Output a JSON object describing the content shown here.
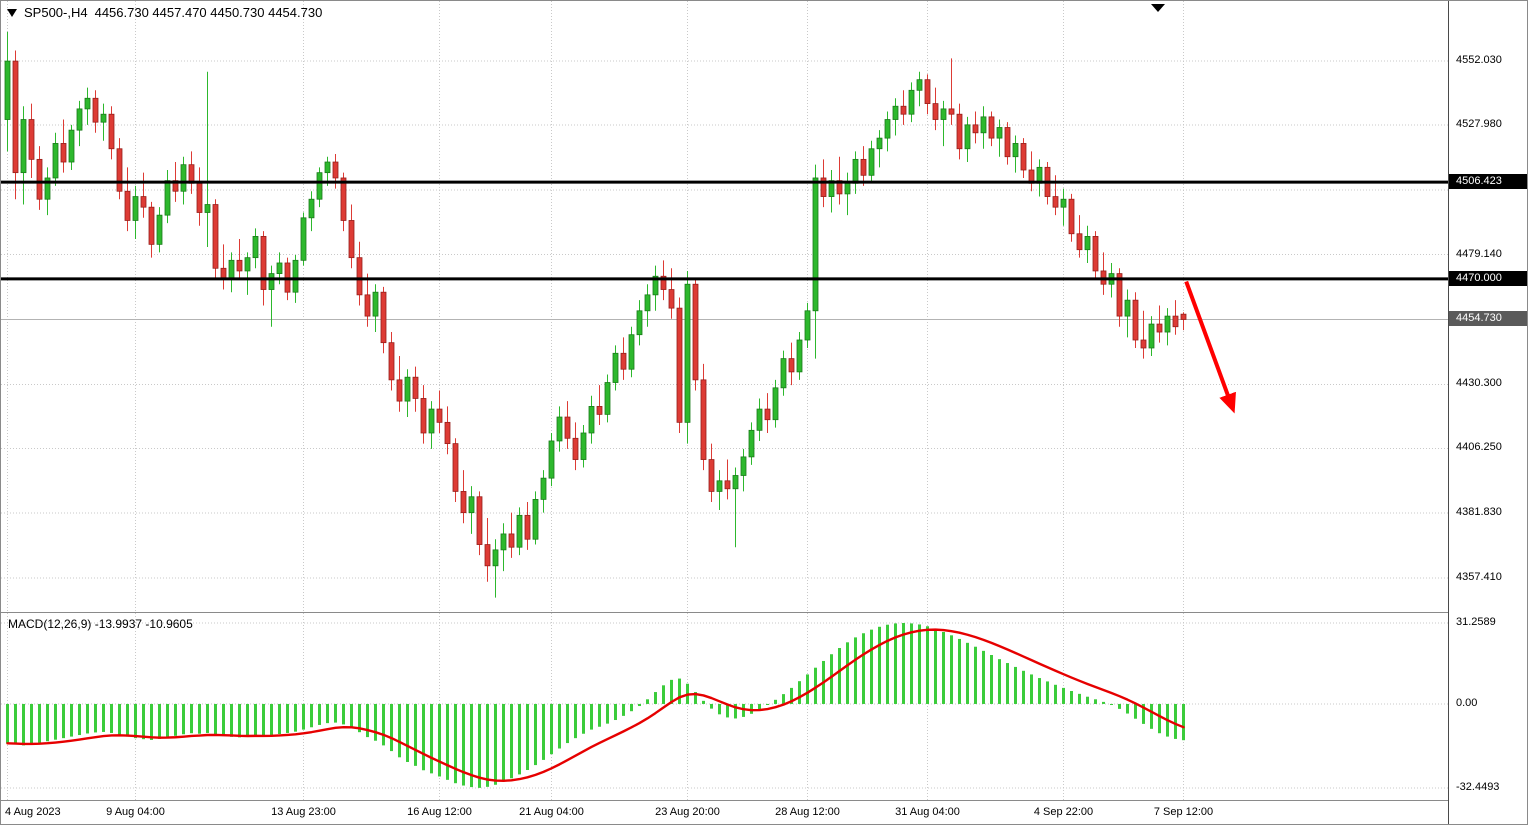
{
  "title": {
    "symbol_period": "SP500-,H4",
    "ohlc": "4456.730 4457.470 4450.730 4454.730"
  },
  "colors": {
    "background": "#ffffff",
    "grid": "#c9c9c9",
    "bull": "#2db82d",
    "bull_border": "#1a7a1a",
    "bear": "#dd3b35",
    "bear_border": "#961f1b",
    "hline": "#000000",
    "arrow": "#ff0000",
    "macd_histogram": "#3bcc3b",
    "macd_signal": "#e60000",
    "badge_level": "#000000",
    "badge_current": "#5a5a5a",
    "current_price_line": "#b3b3b3",
    "axis_text": "#000000"
  },
  "chart_data": {
    "type": "candlestick",
    "symbol": "SP500-",
    "timeframe": "H4",
    "last_ohlc": {
      "open": 4456.73,
      "high": 4457.47,
      "low": 4450.73,
      "close": 4454.73
    },
    "x_ticks": [
      {
        "label": "4 Aug 2023",
        "index": 0,
        "align": "left"
      },
      {
        "label": "9 Aug 04:00",
        "index": 16
      },
      {
        "label": "13 Aug 23:00",
        "index": 37
      },
      {
        "label": "16 Aug 12:00",
        "index": 54
      },
      {
        "label": "21 Aug 04:00",
        "index": 68
      },
      {
        "label": "23 Aug 20:00",
        "index": 85
      },
      {
        "label": "28 Aug 12:00",
        "index": 100
      },
      {
        "label": "31 Aug 04:00",
        "index": 115
      },
      {
        "label": "4 Sep 22:00",
        "index": 132
      },
      {
        "label": "7 Sep 12:00",
        "index": 147
      }
    ],
    "y_ticks": [
      {
        "label": "4552.030",
        "price": 4552.03
      },
      {
        "label": "4527.980",
        "price": 4527.98
      },
      {
        "label": "4479.140",
        "price": 4479.14
      },
      {
        "label": "4430.300",
        "price": 4430.3
      },
      {
        "label": "4406.250",
        "price": 4406.25
      },
      {
        "label": "4381.830",
        "price": 4381.83
      },
      {
        "label": "4357.410",
        "price": 4357.41
      }
    ],
    "grid_prices": [
      4552.03,
      4527.98,
      4503.56,
      4479.14,
      4454.72,
      4430.3,
      4406.25,
      4381.83,
      4357.41
    ],
    "hlines": [
      {
        "label": "4506.423",
        "price": 4506.423
      },
      {
        "label": "4470.000",
        "price": 4470.0
      }
    ],
    "current_price": {
      "label": "4454.730",
      "price": 4454.73
    },
    "arrow": {
      "from": {
        "index": 147.4,
        "price": 4469
      },
      "to": {
        "index": 153,
        "price": 4423
      }
    },
    "candles": [
      [
        4530,
        4563,
        4518,
        4552
      ],
      [
        4552,
        4556,
        4500,
        4510
      ],
      [
        4510,
        4535,
        4498,
        4530
      ],
      [
        4530,
        4536,
        4508,
        4515
      ],
      [
        4515,
        4520,
        4496,
        4500
      ],
      [
        4500,
        4512,
        4494,
        4508
      ],
      [
        4508,
        4525,
        4505,
        4521
      ],
      [
        4521,
        4530,
        4510,
        4514
      ],
      [
        4514,
        4528,
        4511,
        4526
      ],
      [
        4526,
        4537,
        4520,
        4534
      ],
      [
        4534,
        4542,
        4528,
        4538
      ],
      [
        4538,
        4541,
        4525,
        4529
      ],
      [
        4529,
        4536,
        4522,
        4532
      ],
      [
        4532,
        4535,
        4515,
        4519
      ],
      [
        4519,
        4523,
        4500,
        4503
      ],
      [
        4503,
        4512,
        4488,
        4492
      ],
      [
        4492,
        4505,
        4485,
        4501
      ],
      [
        4501,
        4510,
        4493,
        4497
      ],
      [
        4497,
        4499,
        4478,
        4483
      ],
      [
        4483,
        4497,
        4480,
        4494
      ],
      [
        4494,
        4511,
        4491,
        4507
      ],
      [
        4507,
        4514,
        4499,
        4503
      ],
      [
        4503,
        4516,
        4498,
        4513
      ],
      [
        4513,
        4518,
        4502,
        4506
      ],
      [
        4506,
        4512,
        4490,
        4495
      ],
      [
        4495,
        4548,
        4482,
        4498
      ],
      [
        4498,
        4500,
        4470,
        4474
      ],
      [
        4474,
        4483,
        4466,
        4470
      ],
      [
        4470,
        4480,
        4465,
        4477
      ],
      [
        4477,
        4485,
        4470,
        4473
      ],
      [
        4473,
        4480,
        4464,
        4478
      ],
      [
        4478,
        4489,
        4474,
        4486
      ],
      [
        4486,
        4488,
        4460,
        4466
      ],
      [
        4466,
        4475,
        4452,
        4472
      ],
      [
        4472,
        4480,
        4468,
        4476
      ],
      [
        4476,
        4478,
        4462,
        4465
      ],
      [
        4465,
        4479,
        4461,
        4477
      ],
      [
        4477,
        4495,
        4475,
        4493
      ],
      [
        4493,
        4503,
        4488,
        4500
      ],
      [
        4500,
        4512,
        4497,
        4510
      ],
      [
        4510,
        4516,
        4505,
        4514
      ],
      [
        4514,
        4517,
        4504,
        4508
      ],
      [
        4508,
        4510,
        4488,
        4492
      ],
      [
        4492,
        4498,
        4474,
        4478
      ],
      [
        4478,
        4484,
        4460,
        4464
      ],
      [
        4464,
        4472,
        4452,
        4456
      ],
      [
        4456,
        4468,
        4450,
        4465
      ],
      [
        4465,
        4467,
        4442,
        4446
      ],
      [
        4446,
        4450,
        4428,
        4432
      ],
      [
        4432,
        4441,
        4420,
        4424
      ],
      [
        4424,
        4436,
        4418,
        4433
      ],
      [
        4433,
        4437,
        4420,
        4425
      ],
      [
        4425,
        4430,
        4408,
        4412
      ],
      [
        4412,
        4424,
        4406,
        4421
      ],
      [
        4421,
        4428,
        4412,
        4416
      ],
      [
        4416,
        4422,
        4404,
        4408
      ],
      [
        4408,
        4410,
        4386,
        4390
      ],
      [
        4390,
        4398,
        4378,
        4382
      ],
      [
        4382,
        4392,
        4374,
        4388
      ],
      [
        4388,
        4390,
        4366,
        4370
      ],
      [
        4370,
        4380,
        4356,
        4362
      ],
      [
        4362,
        4372,
        4350,
        4368
      ],
      [
        4368,
        4378,
        4360,
        4374
      ],
      [
        4374,
        4382,
        4365,
        4369
      ],
      [
        4369,
        4384,
        4366,
        4381
      ],
      [
        4381,
        4386,
        4368,
        4372
      ],
      [
        4372,
        4390,
        4370,
        4387
      ],
      [
        4387,
        4398,
        4382,
        4395
      ],
      [
        4395,
        4412,
        4392,
        4409
      ],
      [
        4409,
        4422,
        4405,
        4418
      ],
      [
        4418,
        4424,
        4406,
        4410
      ],
      [
        4410,
        4416,
        4398,
        4402
      ],
      [
        4402,
        4415,
        4399,
        4412
      ],
      [
        4412,
        4426,
        4408,
        4422
      ],
      [
        4422,
        4430,
        4415,
        4419
      ],
      [
        4419,
        4434,
        4416,
        4431
      ],
      [
        4431,
        4445,
        4428,
        4442
      ],
      [
        4442,
        4448,
        4432,
        4436
      ],
      [
        4436,
        4452,
        4433,
        4449
      ],
      [
        4449,
        4462,
        4445,
        4458
      ],
      [
        4458,
        4468,
        4452,
        4464
      ],
      [
        4464,
        4475,
        4458,
        4471
      ],
      [
        4471,
        4477,
        4462,
        4466
      ],
      [
        4466,
        4474,
        4455,
        4459
      ],
      [
        4459,
        4463,
        4412,
        4416
      ],
      [
        4416,
        4473,
        4408,
        4468
      ],
      [
        4468,
        4470,
        4428,
        4432
      ],
      [
        4432,
        4438,
        4398,
        4402
      ],
      [
        4402,
        4408,
        4386,
        4390
      ],
      [
        4390,
        4398,
        4383,
        4394
      ],
      [
        4394,
        4402,
        4387,
        4391
      ],
      [
        4391,
        4399,
        4369,
        4396
      ],
      [
        4396,
        4406,
        4390,
        4403
      ],
      [
        4403,
        4416,
        4400,
        4413
      ],
      [
        4413,
        4425,
        4409,
        4421
      ],
      [
        4421,
        4427,
        4412,
        4417
      ],
      [
        4417,
        4432,
        4414,
        4429
      ],
      [
        4429,
        4443,
        4426,
        4440
      ],
      [
        4440,
        4446,
        4430,
        4435
      ],
      [
        4435,
        4450,
        4432,
        4447
      ],
      [
        4447,
        4461,
        4444,
        4458
      ],
      [
        4458,
        4513,
        4440,
        4508
      ],
      [
        4508,
        4515,
        4497,
        4501
      ],
      [
        4501,
        4511,
        4495,
        4507
      ],
      [
        4507,
        4516,
        4498,
        4502
      ],
      [
        4502,
        4510,
        4494,
        4506
      ],
      [
        4506,
        4518,
        4502,
        4515
      ],
      [
        4515,
        4520,
        4505,
        4509
      ],
      [
        4509,
        4522,
        4506,
        4519
      ],
      [
        4519,
        4526,
        4512,
        4523
      ],
      [
        4523,
        4533,
        4518,
        4530
      ],
      [
        4530,
        4538,
        4524,
        4535
      ],
      [
        4535,
        4541,
        4528,
        4532
      ],
      [
        4532,
        4544,
        4529,
        4541
      ],
      [
        4541,
        4548,
        4535,
        4545
      ],
      [
        4545,
        4547,
        4532,
        4536
      ],
      [
        4536,
        4542,
        4526,
        4530
      ],
      [
        4530,
        4537,
        4520,
        4534
      ],
      [
        4534,
        4553,
        4528,
        4532
      ],
      [
        4532,
        4536,
        4515,
        4519
      ],
      [
        4519,
        4531,
        4514,
        4528
      ],
      [
        4528,
        4533,
        4521,
        4525
      ],
      [
        4525,
        4535,
        4519,
        4531
      ],
      [
        4531,
        4533,
        4520,
        4523
      ],
      [
        4523,
        4530,
        4516,
        4527
      ],
      [
        4527,
        4529,
        4513,
        4516
      ],
      [
        4516,
        4524,
        4510,
        4521
      ],
      [
        4521,
        4523,
        4508,
        4511
      ],
      [
        4511,
        4518,
        4503,
        4506
      ],
      [
        4506,
        4515,
        4501,
        4512
      ],
      [
        4512,
        4514,
        4498,
        4501
      ],
      [
        4501,
        4509,
        4494,
        4497
      ],
      [
        4497,
        4504,
        4490,
        4500
      ],
      [
        4500,
        4502,
        4484,
        4487
      ],
      [
        4487,
        4494,
        4478,
        4481
      ],
      [
        4481,
        4490,
        4476,
        4486
      ],
      [
        4486,
        4488,
        4470,
        4473
      ],
      [
        4473,
        4480,
        4464,
        4468
      ],
      [
        4468,
        4476,
        4463,
        4472
      ],
      [
        4472,
        4474,
        4452,
        4456
      ],
      [
        4456,
        4466,
        4448,
        4462
      ],
      [
        4462,
        4465,
        4444,
        4447
      ],
      [
        4447,
        4458,
        4440,
        4444
      ],
      [
        4444,
        4456,
        4441,
        4453
      ],
      [
        4453,
        4460,
        4446,
        4450
      ],
      [
        4450,
        4459,
        4445,
        4456
      ],
      [
        4456,
        4462,
        4449,
        4452
      ],
      [
        4456.73,
        4457.47,
        4450.73,
        4454.73
      ]
    ],
    "macd": {
      "label": "MACD(12,26,9) -13.9937 -10.9605",
      "params": "12,26,9",
      "signal_period": 9,
      "last_main": -13.9937,
      "last_signal": -10.9605,
      "y_ticks": [
        {
          "label": "31.2589",
          "value": 31.2589
        },
        {
          "label": "0.00",
          "value": 0
        },
        {
          "label": "-32.4493",
          "value": -32.4493
        }
      ],
      "histogram": [
        -15.2,
        -15.6,
        -16,
        -15.5,
        -15,
        -14.4,
        -13.8,
        -13.2,
        -12.6,
        -12,
        -11.4,
        -11,
        -10.8,
        -11.2,
        -11.8,
        -12.6,
        -13.2,
        -13.6,
        -13.9,
        -13.5,
        -12.9,
        -12.3,
        -11.7,
        -11.3,
        -11.5,
        -11.2,
        -11.8,
        -12.4,
        -12.7,
        -12.9,
        -12.6,
        -12.1,
        -12.4,
        -12.1,
        -11.6,
        -11.2,
        -10.7,
        -9.9,
        -9,
        -8.1,
        -7.4,
        -7.2,
        -7.9,
        -9.2,
        -10.9,
        -12.8,
        -14.2,
        -16,
        -18.2,
        -20.6,
        -22.4,
        -23.9,
        -25.6,
        -26.8,
        -28,
        -29.3,
        -30.6,
        -31.5,
        -32.1,
        -32.4,
        -32,
        -31.2,
        -30,
        -28.7,
        -27.2,
        -25.5,
        -23.6,
        -21.6,
        -19.4,
        -17.2,
        -15.1,
        -13.2,
        -11.5,
        -9.9,
        -8.8,
        -7.6,
        -6.2,
        -4.6,
        -2.8,
        -0.8,
        1.8,
        4.6,
        7.2,
        9.3,
        9.8,
        7.8,
        4.6,
        1.2,
        -1.8,
        -4,
        -5.2,
        -5.6,
        -5,
        -3.8,
        -2.2,
        -0.4,
        1.6,
        3.8,
        6.2,
        8.8,
        11.4,
        14,
        16.6,
        19.2,
        21.6,
        23.8,
        25.7,
        27.3,
        28.7,
        29.8,
        30.6,
        31.1,
        31.26,
        31.1,
        30.7,
        30,
        29,
        27.8,
        26.5,
        25.1,
        23.6,
        22.1,
        20.5,
        18.9,
        17.3,
        15.8,
        14.3,
        12.8,
        11.4,
        10,
        8.7,
        7.4,
        6.2,
        5,
        3.9,
        2.8,
        1.8,
        0.8,
        -0.4,
        -1.9,
        -3.7,
        -5.7,
        -7.7,
        -9.6,
        -11.3,
        -12.6,
        -13.5,
        -13.9937
      ]
    }
  }
}
